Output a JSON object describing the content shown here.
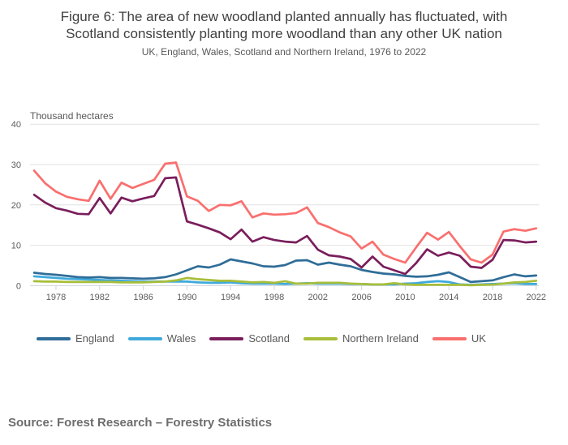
{
  "header": {
    "title_line1": "Figure 6: The area of new woodland planted annually has fluctuated, with",
    "title_line2": "Scotland consistently planting more woodland than any other UK nation",
    "subtitle": "UK, England, Wales, Scotland and Northern Ireland, 1976 to 2022"
  },
  "source_text": "Source: Forest Research – Forestry Statistics",
  "colors": {
    "title": "#3f3f3f",
    "axis_text": "#5d5d5d",
    "gridline": "#e2e2e2",
    "axis_line": "#ccd6dd"
  },
  "chart_data": {
    "type": "line",
    "title": "Figure 6: The area of new woodland planted annually has fluctuated, with Scotland consistently planting more woodland than any other UK nation",
    "subtitle": "UK, England, Wales, Scotland and Northern Ireland, 1976 to 2022",
    "unit_label": "Thousand hectares",
    "xlabel": "",
    "ylabel": "Thousand hectares",
    "ylim": [
      0,
      40
    ],
    "y_ticks": [
      0,
      10,
      20,
      30,
      40
    ],
    "x_tick_labels": [
      "1978",
      "1982",
      "1986",
      "1990",
      "1994",
      "1998",
      "2002",
      "2006",
      "2010",
      "2014",
      "2018",
      "2022"
    ],
    "grid": "horizontal",
    "legend_position": "bottom",
    "x": [
      1976,
      1977,
      1978,
      1979,
      1980,
      1981,
      1982,
      1983,
      1984,
      1985,
      1986,
      1987,
      1988,
      1989,
      1990,
      1991,
      1992,
      1993,
      1994,
      1995,
      1996,
      1997,
      1998,
      1999,
      2000,
      2001,
      2002,
      2003,
      2004,
      2005,
      2006,
      2007,
      2008,
      2009,
      2010,
      2011,
      2012,
      2013,
      2014,
      2015,
      2016,
      2017,
      2018,
      2019,
      2020,
      2021,
      2022
    ],
    "series": [
      {
        "name": "England",
        "color": "#2F6D98",
        "values": [
          3.2,
          2.9,
          2.7,
          2.4,
          2.1,
          2.0,
          2.1,
          1.9,
          1.9,
          1.8,
          1.7,
          1.8,
          2.1,
          2.8,
          3.8,
          4.8,
          4.5,
          5.2,
          6.5,
          6.0,
          5.5,
          4.8,
          4.7,
          5.1,
          6.2,
          6.3,
          5.2,
          5.7,
          5.2,
          4.8,
          3.9,
          3.4,
          3.0,
          2.8,
          2.4,
          2.2,
          2.3,
          2.7,
          3.3,
          2.1,
          0.9,
          1.1,
          1.3,
          2.1,
          2.8,
          2.3,
          2.5
        ]
      },
      {
        "name": "Wales",
        "color": "#3FA9DC",
        "values": [
          2.3,
          2.1,
          1.9,
          1.7,
          1.6,
          1.5,
          1.4,
          1.3,
          1.2,
          1.1,
          1.0,
          1.0,
          1.0,
          1.0,
          1.0,
          0.8,
          0.7,
          0.7,
          0.8,
          0.6,
          0.5,
          0.5,
          0.5,
          0.4,
          0.5,
          0.6,
          0.5,
          0.5,
          0.5,
          0.4,
          0.4,
          0.3,
          0.3,
          0.3,
          0.5,
          0.6,
          0.9,
          1.1,
          0.9,
          0.3,
          0.2,
          0.3,
          0.4,
          0.5,
          0.6,
          0.4,
          0.4
        ]
      },
      {
        "name": "Scotland",
        "color": "#7A1E5C",
        "values": [
          22.5,
          20.6,
          19.2,
          18.6,
          17.8,
          17.7,
          21.7,
          17.9,
          21.8,
          20.9,
          21.6,
          22.2,
          26.6,
          26.8,
          15.9,
          15.1,
          14.2,
          13.2,
          11.5,
          13.9,
          10.9,
          12.0,
          11.3,
          10.9,
          10.7,
          12.3,
          8.9,
          7.5,
          7.2,
          6.6,
          4.5,
          7.2,
          4.7,
          3.8,
          2.9,
          5.6,
          9.0,
          7.4,
          8.2,
          7.4,
          4.7,
          4.4,
          6.4,
          11.3,
          11.2,
          10.7,
          10.9
        ]
      },
      {
        "name": "Northern Ireland",
        "color": "#A8BE3A",
        "values": [
          1.1,
          1.0,
          1.0,
          0.9,
          0.9,
          0.9,
          0.9,
          0.9,
          0.8,
          0.8,
          0.8,
          0.9,
          1.0,
          1.3,
          1.9,
          1.6,
          1.4,
          1.2,
          1.2,
          1.0,
          0.8,
          0.9,
          0.7,
          1.1,
          0.5,
          0.5,
          0.7,
          0.7,
          0.7,
          0.5,
          0.4,
          0.3,
          0.3,
          0.6,
          0.3,
          0.2,
          0.2,
          0.2,
          0.2,
          0.2,
          0.1,
          0.2,
          0.25,
          0.5,
          0.8,
          0.9,
          1.2
        ]
      },
      {
        "name": "UK",
        "color": "#F96F6E",
        "values": [
          28.5,
          25.4,
          23.3,
          22.0,
          21.4,
          21.0,
          26.0,
          21.5,
          25.5,
          24.2,
          25.2,
          26.2,
          30.2,
          30.5,
          22.1,
          21.0,
          18.5,
          20.0,
          19.9,
          20.9,
          16.9,
          17.9,
          17.6,
          17.7,
          18.0,
          19.4,
          15.5,
          14.5,
          13.2,
          12.2,
          9.2,
          10.9,
          7.7,
          6.6,
          5.7,
          9.5,
          13.1,
          11.4,
          13.3,
          9.8,
          6.5,
          5.7,
          7.7,
          13.4,
          14.0,
          13.6,
          14.2
        ]
      }
    ]
  }
}
